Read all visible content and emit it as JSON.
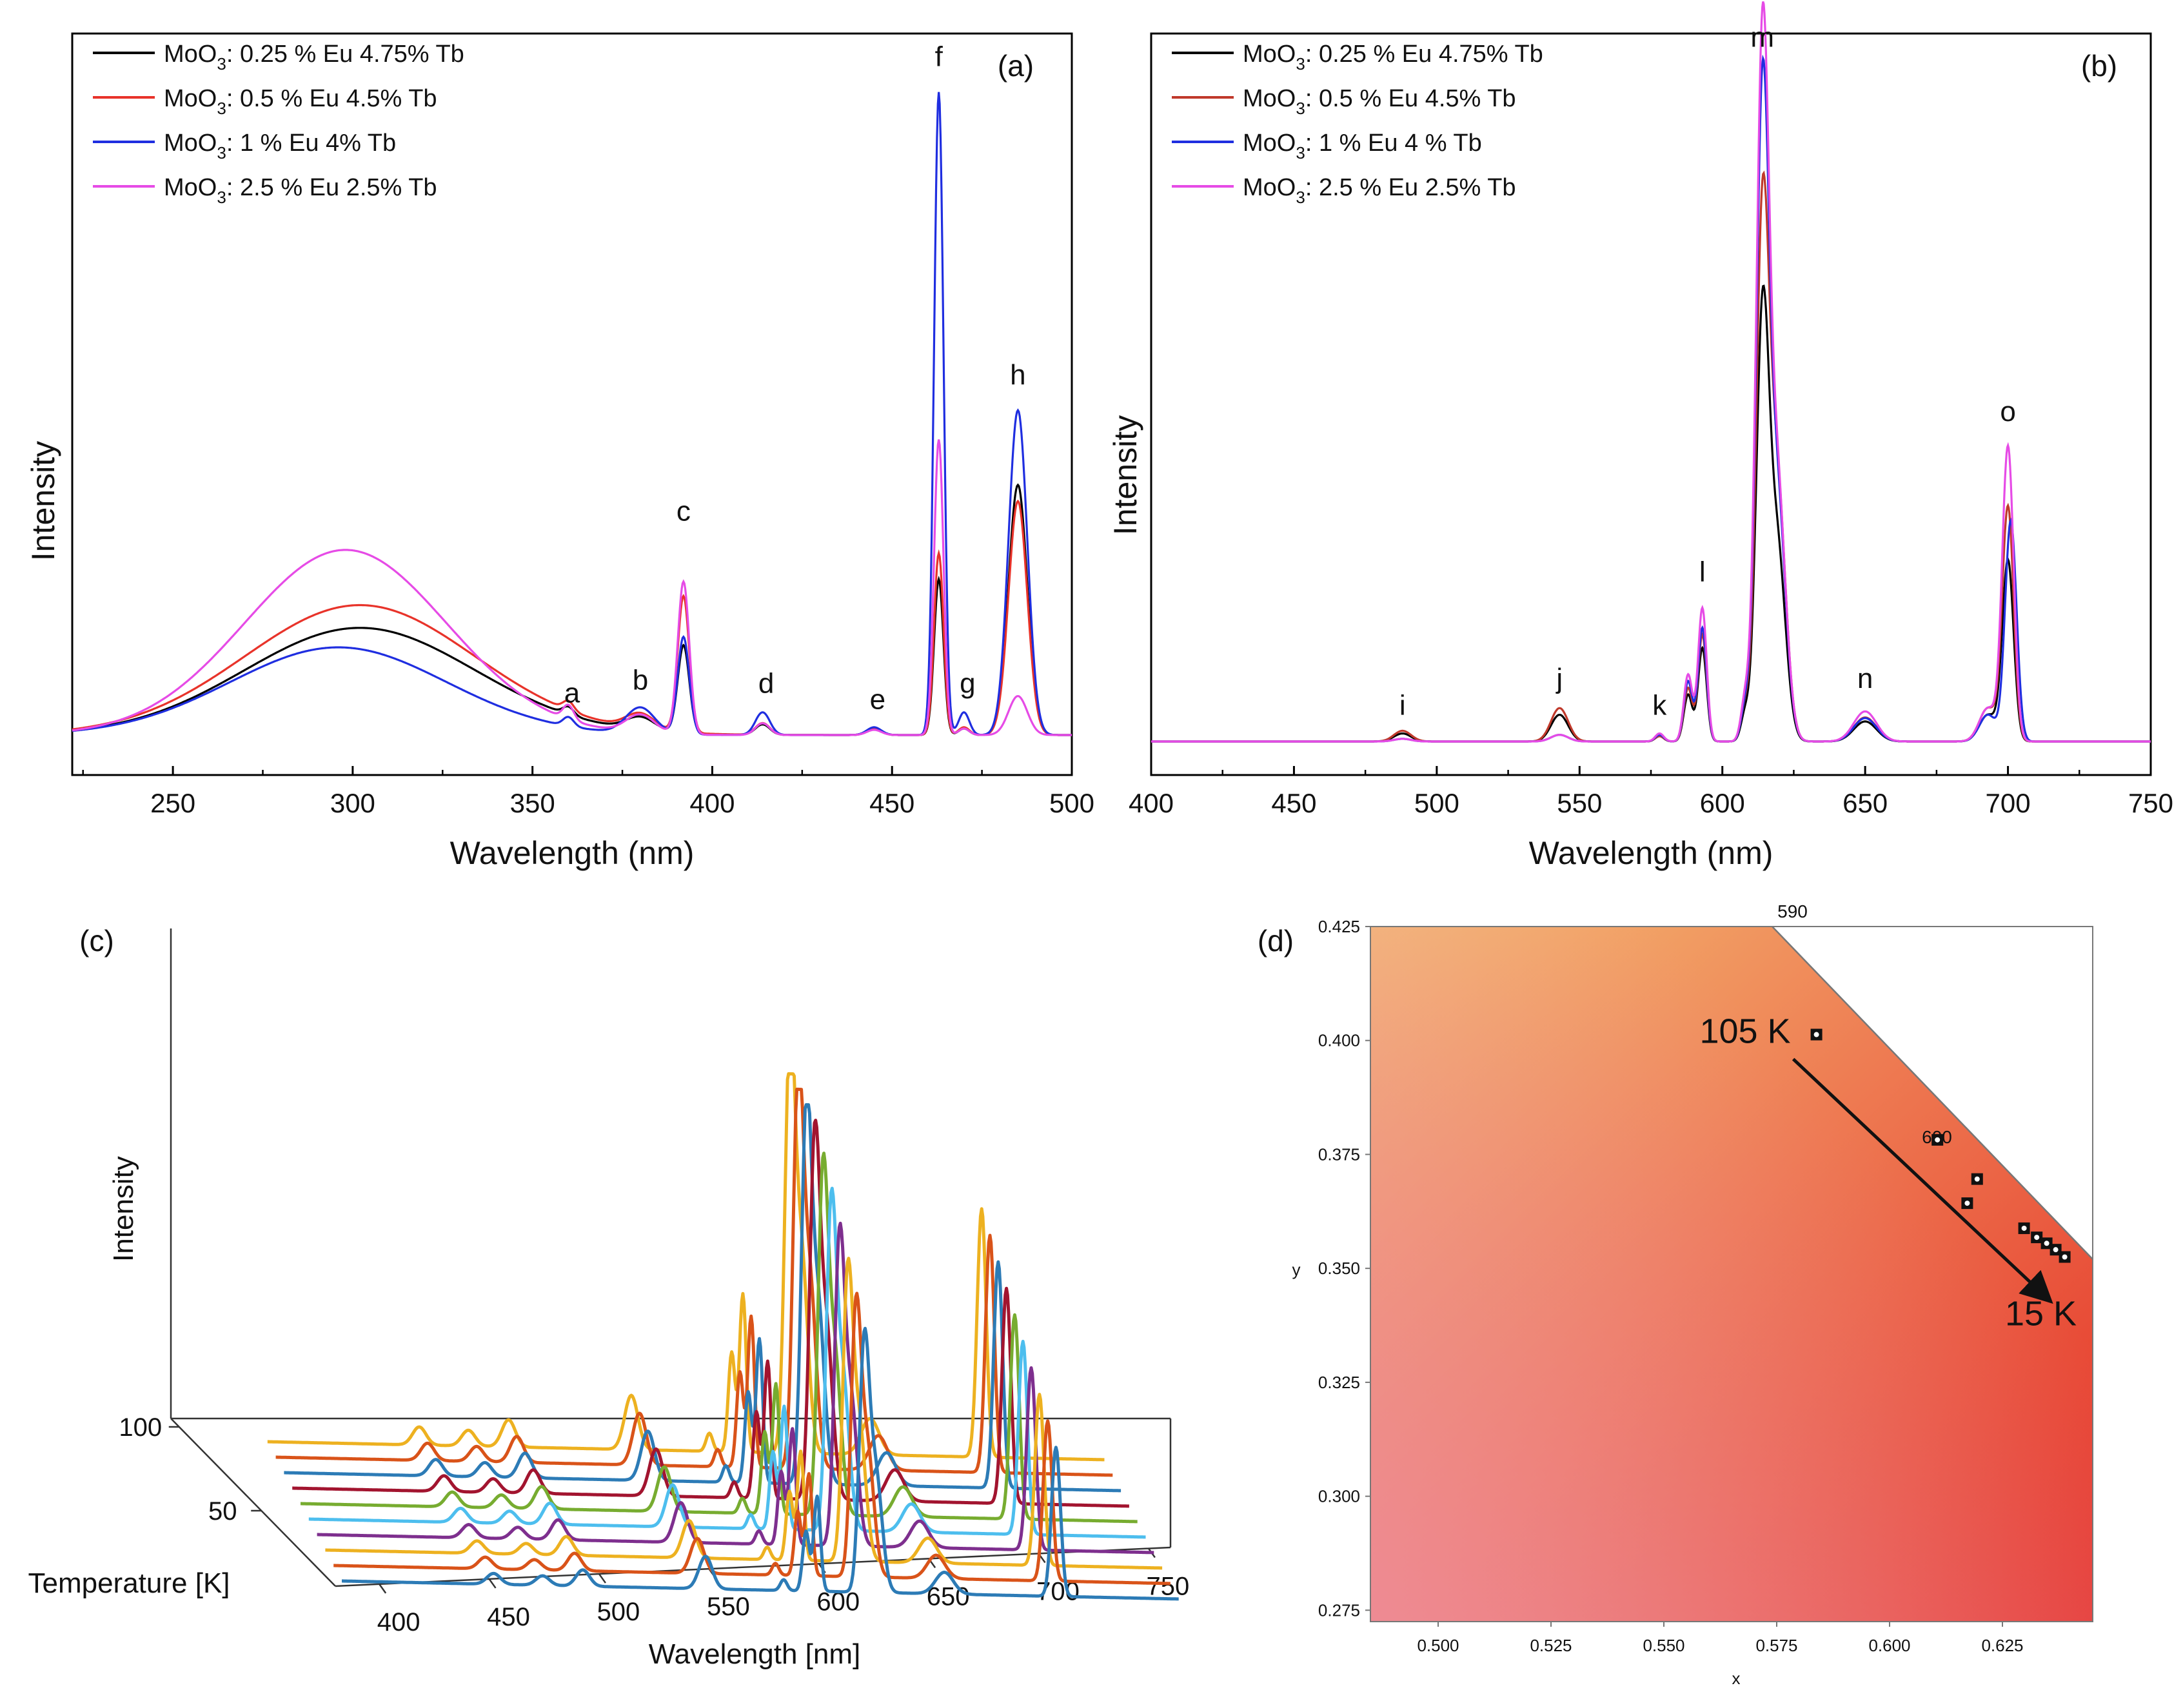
{
  "chart_data": [
    {
      "panel": "(a)",
      "type": "line",
      "xlabel": "Wavelength (nm)",
      "ylabel": "Intensity",
      "xlim": [
        222,
        500
      ],
      "ylim": [
        0,
        1.08
      ],
      "xticks": [
        250,
        300,
        350,
        400,
        450,
        500
      ],
      "legend_position": "top-left",
      "series": [
        {
          "name": "MoO3: 0.25 % Eu 4.75% Tb",
          "legend_main": "MoO",
          "legend_sub": "3",
          "legend_rest": ": 0.25 % Eu 4.75% Tb",
          "color": "#000000",
          "broad": {
            "center": 302,
            "width": 32,
            "height": 0.165
          },
          "peaks": [
            [
              360,
              0.012,
              1.5
            ],
            [
              380,
              0.02,
              4
            ],
            [
              392,
              0.135,
              1.6
            ],
            [
              414,
              0.016,
              2
            ],
            [
              445,
              0.01,
              2
            ],
            [
              463,
              0.24,
              1.3
            ],
            [
              470,
              0.01,
              1.5
            ],
            [
              485,
              0.385,
              2.6
            ]
          ]
        },
        {
          "name": "MoO3: 0.5 % Eu 4.5% Tb",
          "legend_main": "MoO",
          "legend_sub": "3",
          "legend_rest": ": 0.5 % Eu 4.5% Tb",
          "color": "#e8332a",
          "broad": {
            "center": 302,
            "width": 32,
            "height": 0.2
          },
          "peaks": [
            [
              360,
              0.014,
              1.5
            ],
            [
              380,
              0.024,
              4
            ],
            [
              392,
              0.21,
              1.6
            ],
            [
              414,
              0.018,
              2
            ],
            [
              445,
              0.01,
              2
            ],
            [
              463,
              0.28,
              1.3
            ],
            [
              470,
              0.012,
              1.5
            ],
            [
              485,
              0.36,
              2.6
            ]
          ]
        },
        {
          "name": "MoO3: 1 % Eu 4% Tb",
          "legend_main": "MoO",
          "legend_sub": "3",
          "legend_rest": ": 1 % Eu 4% Tb",
          "color": "#1f2ee0",
          "broad": {
            "center": 296,
            "width": 30,
            "height": 0.135
          },
          "peaks": [
            [
              360,
              0.014,
              1.5
            ],
            [
              380,
              0.04,
              4
            ],
            [
              392,
              0.15,
              1.6
            ],
            [
              414,
              0.035,
              2
            ],
            [
              445,
              0.012,
              2
            ],
            [
              463,
              0.99,
              1.3
            ],
            [
              470,
              0.035,
              1.5
            ],
            [
              485,
              0.5,
              2.6
            ]
          ]
        },
        {
          "name": "MoO3: 2.5 % Eu 2.5% Tb",
          "legend_main": "MoO",
          "legend_sub": "3",
          "legend_rest": ": 2.5 % Eu 2.5% Tb",
          "color": "#e64be6",
          "broad": {
            "center": 298,
            "width": 28,
            "height": 0.285
          },
          "peaks": [
            [
              360,
              0.022,
              1.5
            ],
            [
              380,
              0.028,
              4
            ],
            [
              392,
              0.235,
              1.6
            ],
            [
              414,
              0.018,
              2
            ],
            [
              445,
              0.008,
              2
            ],
            [
              463,
              0.455,
              1.3
            ],
            [
              470,
              0.01,
              1.5
            ],
            [
              485,
              0.06,
              2.6
            ]
          ]
        }
      ],
      "peak_labels": [
        {
          "text": "a",
          "x": 361,
          "y": 0.05
        },
        {
          "text": "b",
          "x": 380,
          "y": 0.07
        },
        {
          "text": "c",
          "x": 392,
          "y": 0.33
        },
        {
          "text": "d",
          "x": 415,
          "y": 0.065
        },
        {
          "text": "e",
          "x": 446,
          "y": 0.04
        },
        {
          "text": "f",
          "x": 463,
          "y": 1.03
        },
        {
          "text": "g",
          "x": 471,
          "y": 0.065
        },
        {
          "text": "h",
          "x": 485,
          "y": 0.54
        }
      ]
    },
    {
      "panel": "(b)",
      "type": "line",
      "xlabel": "Wavelength (nm)",
      "ylabel": "Intensity",
      "xlim": [
        400,
        750
      ],
      "ylim": [
        0,
        1.06
      ],
      "xticks": [
        400,
        450,
        500,
        550,
        600,
        650,
        700,
        750
      ],
      "legend_position": "top-left",
      "series": [
        {
          "name": "MoO3: 0.25 % Eu 4.75% Tb",
          "legend_main": "MoO",
          "legend_sub": "3",
          "legend_rest": ": 0.25 % Eu 4.75% Tb",
          "color": "#000000",
          "peaks": [
            [
              488,
              0.012,
              3
            ],
            [
              543,
              0.04,
              3
            ],
            [
              578,
              0.008,
              1.5
            ],
            [
              588,
              0.07,
              1.5
            ],
            [
              593,
              0.14,
              1.5
            ],
            [
              608,
              0.04,
              1.5
            ],
            [
              614,
              0.6,
              2.2
            ],
            [
              619,
              0.3,
              3
            ],
            [
              650,
              0.03,
              4
            ],
            [
              693,
              0.04,
              3
            ],
            [
              700,
              0.27,
              2
            ]
          ]
        },
        {
          "name": "MoO3: 0.5 % Eu 4.5% Tb",
          "legend_main": "MoO",
          "legend_sub": "3",
          "legend_rest": ": 0.5 % Eu 4.5% Tb",
          "color": "#c0392b",
          "peaks": [
            [
              488,
              0.016,
              3
            ],
            [
              543,
              0.05,
              3
            ],
            [
              578,
              0.008,
              1.5
            ],
            [
              588,
              0.08,
              1.5
            ],
            [
              593,
              0.16,
              1.5
            ],
            [
              608,
              0.05,
              1.5
            ],
            [
              614,
              0.74,
              2.2
            ],
            [
              619,
              0.4,
              3
            ],
            [
              650,
              0.036,
              4
            ],
            [
              693,
              0.05,
              3
            ],
            [
              700,
              0.35,
              2
            ]
          ]
        },
        {
          "name": "MoO3: 1 % Eu 4 % Tb",
          "legend_main": "MoO",
          "legend_sub": "3",
          "legend_rest": ": 1 % Eu 4 % Tb",
          "color": "#1f2ee0",
          "peaks": [
            [
              488,
              0.004,
              3
            ],
            [
              543,
              0.01,
              3
            ],
            [
              578,
              0.01,
              1.5
            ],
            [
              588,
              0.09,
              1.5
            ],
            [
              593,
              0.17,
              1.5
            ],
            [
              608,
              0.05,
              1.5
            ],
            [
              614,
              0.92,
              2.2
            ],
            [
              619,
              0.38,
              3
            ],
            [
              650,
              0.035,
              4
            ],
            [
              693,
              0.04,
              3
            ],
            [
              701,
              0.33,
              2
            ]
          ]
        },
        {
          "name": "MoO3: 2.5 % Eu 2.5% Tb",
          "legend_main": "MoO",
          "legend_sub": "3",
          "legend_rest": ": 2.5 % Eu 2.5% Tb",
          "color": "#e64be6",
          "peaks": [
            [
              488,
              0.004,
              3
            ],
            [
              543,
              0.01,
              3
            ],
            [
              578,
              0.012,
              1.5
            ],
            [
              588,
              0.1,
              1.5
            ],
            [
              593,
              0.2,
              1.5
            ],
            [
              608,
              0.06,
              1.5
            ],
            [
              614,
              1.0,
              2.2
            ],
            [
              619,
              0.4,
              3
            ],
            [
              650,
              0.045,
              4
            ],
            [
              693,
              0.05,
              3
            ],
            [
              700,
              0.44,
              2
            ]
          ]
        }
      ],
      "peak_labels": [
        {
          "text": "i",
          "x": 488,
          "y": 0.04
        },
        {
          "text": "j",
          "x": 543,
          "y": 0.08
        },
        {
          "text": "k",
          "x": 578,
          "y": 0.04
        },
        {
          "text": "l",
          "x": 593,
          "y": 0.24
        },
        {
          "text": "m",
          "x": 614,
          "y": 1.04
        },
        {
          "text": "n",
          "x": 650,
          "y": 0.08
        },
        {
          "text": "o",
          "x": 700,
          "y": 0.48
        }
      ]
    },
    {
      "panel": "(c)",
      "type": "line",
      "subtype": "waterfall",
      "xlabel": "Wavelength [nm]",
      "ylabel": "Intensity",
      "zlabel": "Temperature [K]",
      "xlim": [
        380,
        760
      ],
      "xticks": [
        400,
        450,
        500,
        550,
        600,
        650,
        700,
        750
      ],
      "zticks": [
        50,
        100
      ],
      "zlim": [
        5,
        105
      ],
      "temperatures": [
        15,
        25,
        35,
        45,
        55,
        65,
        75,
        85,
        95,
        105
      ],
      "line_colors": [
        "#2c7bb6",
        "#d95319",
        "#edb120",
        "#7e2f8e",
        "#4dbeee",
        "#77ac30",
        "#a2142f",
        "#2c7bb6",
        "#d95319",
        "#edb120"
      ],
      "peaks": [
        [
          448,
          0.04,
          3
        ],
        [
          470,
          0.035,
          3
        ],
        [
          488,
          0.06,
          3
        ],
        [
          543,
          0.12,
          3
        ],
        [
          578,
          0.04,
          1.5
        ],
        [
          588,
          0.22,
          1.5
        ],
        [
          593,
          0.35,
          1.5
        ],
        [
          614,
          0.85,
          2.2
        ],
        [
          619,
          0.45,
          3
        ],
        [
          650,
          0.08,
          4
        ],
        [
          700,
          0.55,
          2
        ]
      ]
    },
    {
      "panel": "(d)",
      "type": "scatter",
      "xlabel": "x",
      "ylabel": "y",
      "xlim": [
        0.485,
        0.645
      ],
      "ylim": [
        0.2725,
        0.425
      ],
      "xticks": [
        "0.500",
        "0.525",
        "0.550",
        "0.575",
        "0.600",
        "0.625"
      ],
      "yticks": [
        "0.275",
        "0.300",
        "0.325",
        "0.350",
        "0.375",
        "0.400",
        "0.425"
      ],
      "locus": [
        [
          0.574,
          0.425
        ],
        [
          0.645,
          0.352
        ]
      ],
      "locus_labels": [
        {
          "text": "590",
          "x": 0.5785,
          "y": 0.427
        },
        {
          "text": "600",
          "x": 0.6105,
          "y": 0.3775
        }
      ],
      "points": [
        [
          0.5838,
          0.4013
        ],
        [
          0.6106,
          0.3782
        ],
        [
          0.6194,
          0.3696
        ],
        [
          0.6172,
          0.3643
        ],
        [
          0.6298,
          0.3588
        ],
        [
          0.6326,
          0.3568
        ],
        [
          0.6348,
          0.3555
        ],
        [
          0.6368,
          0.3541
        ],
        [
          0.6388,
          0.3525
        ]
      ],
      "annotations": [
        {
          "text": "105 K",
          "x": 0.568,
          "y": 0.3995
        },
        {
          "text": "15 K",
          "x": 0.6335,
          "y": 0.3375
        }
      ],
      "arrow": {
        "from": [
          0.5838,
          0.4013
        ],
        "to": [
          0.6352,
          0.3432
        ]
      }
    }
  ]
}
